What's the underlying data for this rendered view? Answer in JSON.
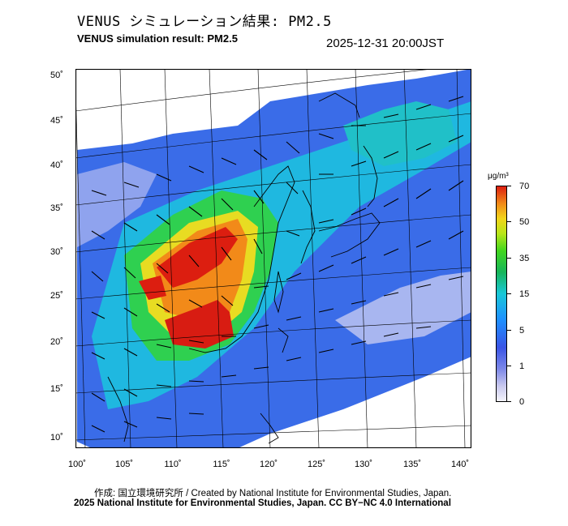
{
  "header": {
    "title_jp": "VENUS シミュレーション結果: PM2.5",
    "title_en": "VENUS simulation result: PM2.5",
    "timestamp": "2025-12-31 20:00JST"
  },
  "map": {
    "lat_labels": [
      "50˚",
      "45˚",
      "40˚",
      "35˚",
      "30˚",
      "25˚",
      "20˚",
      "15˚",
      "10˚"
    ],
    "lon_labels": [
      "100˚",
      "105˚",
      "110˚",
      "115˚",
      "120˚",
      "125˚",
      "130˚",
      "135˚",
      "140˚"
    ]
  },
  "colorbar": {
    "unit": "μg/m³",
    "labels": [
      "70",
      "50",
      "35",
      "15",
      "5",
      "1",
      "0"
    ],
    "colors": [
      "#dc1e10",
      "#f28a19",
      "#f2d51a",
      "#41d61e",
      "#19c8d8",
      "#3a55e6",
      "#f4f4fb"
    ]
  },
  "footer": {
    "credit_jp": "作成: 国立環境研究所 / Created by National Institute for Environmental Studies, Japan.",
    "credit_en": "2025 National Institute for Environmental Studies, Japan. CC BY−NC 4.0 International"
  }
}
